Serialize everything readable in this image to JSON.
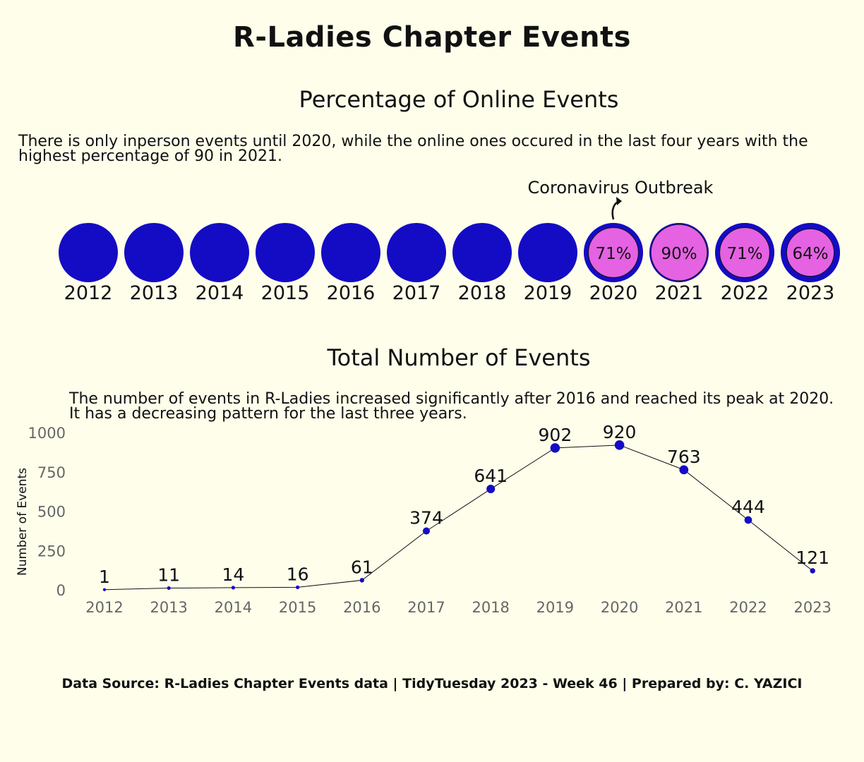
{
  "title": "R-Ladies Chapter Events",
  "footer": "Data Source: R-Ladies Chapter Events data | TidyTuesday 2023 - Week 46 | Prepared by: C. YAZICI",
  "colors": {
    "background": "#fefeeb",
    "inperson": "#140cc4",
    "online": "#e562e3",
    "line": "#111111"
  },
  "chart_data": [
    {
      "type": "bubble",
      "title": "Percentage of Online Events",
      "subtitle": "There is only inperson events until 2020, while the online ones occured in the last four years with the highest percentage of 90 in 2021.",
      "annotation": "Coronavirus Outbreak",
      "annotation_year": "2020",
      "categories": [
        "2012",
        "2013",
        "2014",
        "2015",
        "2016",
        "2017",
        "2018",
        "2019",
        "2020",
        "2021",
        "2022",
        "2023"
      ],
      "online_pct": [
        0,
        0,
        0,
        0,
        0,
        0,
        0,
        0,
        71,
        90,
        71,
        64
      ],
      "labels": [
        "",
        "",
        "",
        "",
        "",
        "",
        "",
        "",
        "71%",
        "90%",
        "71%",
        "64%"
      ]
    },
    {
      "type": "line",
      "title": "Total Number of Events",
      "subtitle": "The number of events in R-Ladies increased significantly after 2016 and reached its peak at 2020. It has a decreasing pattern for the last three years.",
      "ylabel": "Number of Events",
      "xlabel": "",
      "ylim": [
        0,
        1000
      ],
      "yticks": [
        0,
        250,
        500,
        750,
        1000
      ],
      "categories": [
        "2012",
        "2013",
        "2014",
        "2015",
        "2016",
        "2017",
        "2018",
        "2019",
        "2020",
        "2021",
        "2022",
        "2023"
      ],
      "values": [
        1,
        11,
        14,
        16,
        61,
        374,
        641,
        902,
        920,
        763,
        444,
        121
      ]
    }
  ]
}
